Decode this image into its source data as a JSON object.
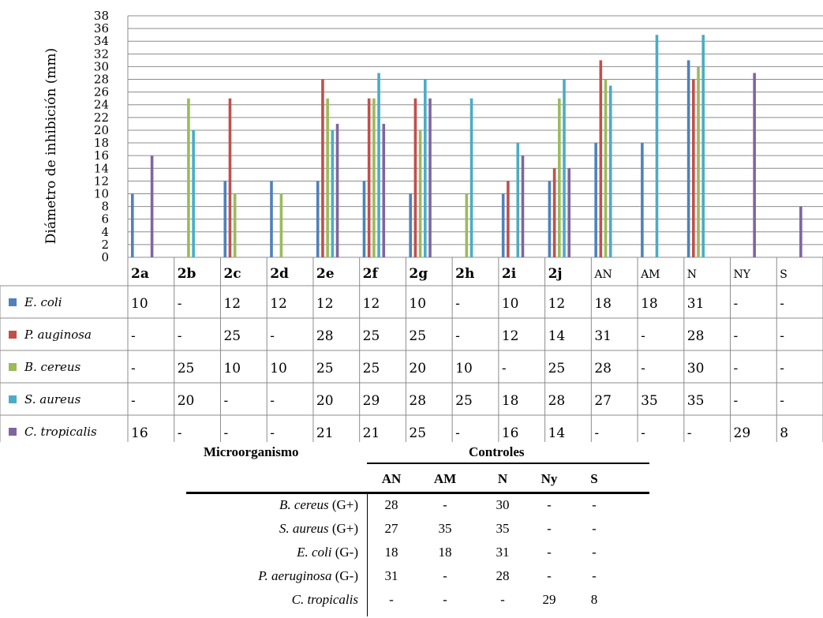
{
  "chart_data": {
    "type": "bar",
    "ylabel": "Diámetro de inhibición (mm)",
    "ylim": [
      0,
      38
    ],
    "yticks": [
      0,
      2,
      4,
      6,
      8,
      10,
      12,
      14,
      16,
      18,
      20,
      22,
      24,
      26,
      28,
      30,
      32,
      34,
      36,
      38
    ],
    "grid": true,
    "categories": [
      "2a",
      "2b",
      "2c",
      "2d",
      "2e",
      "2f",
      "2g",
      "2h",
      "2i",
      "2j",
      "AN",
      "AM",
      "N",
      "NY",
      "S"
    ],
    "series": [
      {
        "name": "E. coli",
        "color": "#4f81bd",
        "values": [
          10,
          null,
          12,
          12,
          12,
          12,
          10,
          null,
          10,
          12,
          18,
          18,
          31,
          null,
          null
        ]
      },
      {
        "name": "P. auginosa",
        "color": "#c0504d",
        "values": [
          null,
          null,
          25,
          null,
          28,
          25,
          25,
          null,
          12,
          14,
          31,
          null,
          28,
          null,
          null
        ]
      },
      {
        "name": "B. cereus",
        "color": "#9bbb59",
        "values": [
          null,
          25,
          10,
          10,
          25,
          25,
          20,
          10,
          null,
          25,
          28,
          null,
          30,
          null,
          null
        ]
      },
      {
        "name": "S. aureus",
        "color": "#4bacc6",
        "values": [
          null,
          20,
          null,
          null,
          20,
          29,
          28,
          25,
          18,
          28,
          27,
          35,
          35,
          null,
          null
        ]
      },
      {
        "name": "C. tropicalis",
        "color": "#8064a2",
        "values": [
          16,
          null,
          null,
          null,
          21,
          21,
          25,
          null,
          16,
          14,
          null,
          null,
          null,
          29,
          8
        ]
      }
    ],
    "table_cells": [
      [
        "10",
        "-",
        "12",
        "12",
        "12",
        "12",
        "10",
        "-",
        "10",
        "12",
        "18",
        "18",
        "31",
        "-",
        "-"
      ],
      [
        "-",
        "-",
        "25",
        "-",
        "28",
        "25",
        "25",
        "-",
        "12",
        "14",
        "31",
        "-",
        "28",
        "-",
        "-"
      ],
      [
        "-",
        "25",
        "10",
        "10",
        "25",
        "25",
        "20",
        "10",
        "-",
        "25",
        "28",
        "-",
        "30",
        "-",
        "-"
      ],
      [
        "-",
        "20",
        "-",
        "-",
        "20",
        "29",
        "28",
        "25",
        "18",
        "28",
        "27",
        "35",
        "35",
        "-",
        "-"
      ],
      [
        "16",
        "-",
        "-",
        "-",
        "21",
        "21",
        "25",
        "-",
        "16",
        "14",
        "-",
        "-",
        "-",
        "29",
        "8"
      ]
    ]
  },
  "controls_table": {
    "col1_header": "Microorganismo",
    "group_header": "Controles",
    "columns": [
      "AN",
      "AM",
      "N",
      "Ny",
      "S"
    ],
    "rows": [
      {
        "name": "B. cereus",
        "suffix": " (G+)",
        "values": [
          "28",
          "-",
          "30",
          "-",
          "-"
        ]
      },
      {
        "name": "S. aureus",
        "suffix": " (G+)",
        "values": [
          "27",
          "35",
          "35",
          "-",
          "-"
        ]
      },
      {
        "name": "E. coli",
        "suffix": " (G-)",
        "values": [
          "18",
          "18",
          "31",
          "-",
          "-"
        ]
      },
      {
        "name": "P. aeruginosa",
        "suffix": " (G-)",
        "values": [
          "31",
          "-",
          "28",
          "-",
          "-"
        ]
      },
      {
        "name": "C. tropicalis",
        "suffix": "",
        "values": [
          "-",
          "-",
          "-",
          "29",
          "8"
        ]
      }
    ]
  }
}
